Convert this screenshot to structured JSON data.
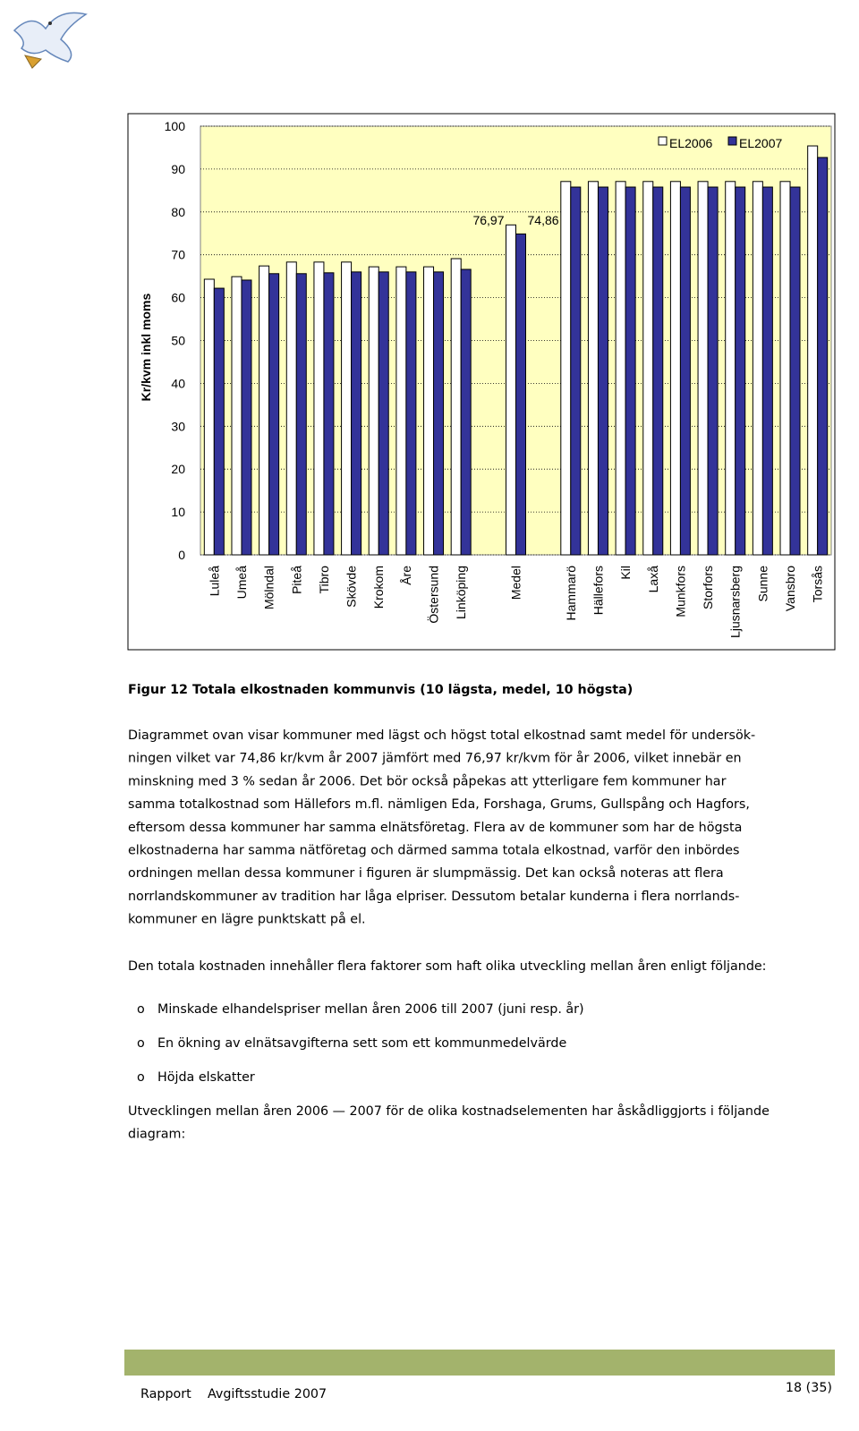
{
  "chart_data": {
    "type": "bar",
    "y_label": "Kr/kvm inkl moms",
    "categories": [
      "Luleå",
      "Umeå",
      "Mölndal",
      "Piteå",
      "Tibro",
      "Skövde",
      "Krokom",
      "Åre",
      "Östersund",
      "Linköping",
      null,
      "Medel",
      null,
      "Hammarö",
      "Hällefors",
      "Kil",
      "Laxå",
      "Munkfors",
      "Storfors",
      "Ljusnarsberg",
      "Sunne",
      "Vansbro",
      "Torsås"
    ],
    "series": [
      {
        "name": "EL2006",
        "color": "#ffffff",
        "values": [
          64.3,
          64.9,
          67.4,
          68.3,
          68.3,
          68.3,
          67.2,
          67.2,
          67.2,
          69.1,
          null,
          76.97,
          null,
          87.1,
          87.1,
          87.1,
          87.1,
          87.1,
          87.1,
          87.1,
          87.1,
          87.1,
          95.4
        ],
        "value_labels": [
          null,
          null,
          null,
          null,
          null,
          null,
          null,
          null,
          null,
          null,
          null,
          "76,97",
          null,
          null,
          null,
          null,
          null,
          null,
          null,
          null,
          null,
          null,
          null
        ]
      },
      {
        "name": "EL2007",
        "color": "#333399",
        "values": [
          62.2,
          64.1,
          65.6,
          65.6,
          65.8,
          66.0,
          66.0,
          66.0,
          66.0,
          66.6,
          null,
          74.86,
          null,
          85.8,
          85.8,
          85.8,
          85.8,
          85.8,
          85.8,
          85.8,
          85.8,
          85.8,
          92.7
        ],
        "value_labels": [
          null,
          null,
          null,
          null,
          null,
          null,
          null,
          null,
          null,
          null,
          null,
          "74,86",
          null,
          null,
          null,
          null,
          null,
          null,
          null,
          null,
          null,
          null,
          null
        ]
      }
    ],
    "ylim": [
      0,
      100
    ],
    "yticks": [
      0,
      10,
      20,
      30,
      40,
      50,
      60,
      70,
      80,
      90,
      100
    ],
    "grid": true,
    "legend": "top-right",
    "plot_background": "#ffffc0"
  },
  "document": {
    "caption": "Figur 12 Totala elkostnaden kommunvis (10 lägsta, medel, 10 högsta)",
    "paragraph": [
      "Diagrammet ovan visar kommuner med lägst och högst total elkostnad samt medel för undersök-",
      "ningen vilket var 74,86 kr/kvm år 2007 jämfört med 76,97  kr/kvm för år 2006, vilket innebär en",
      "minskning med 3 % sedan år 2006. Det bör också påpekas att ytterligare fem kommuner har",
      "samma totalkostnad som Hällefors m.fl. nämligen Eda, Forshaga, Grums, Gullspång och Hagfors,",
      "eftersom dessa kommuner har samma elnätsföretag. Flera av de kommuner som har de högsta",
      "elkostnaderna har samma nätföretag och därmed samma totala elkostnad, varför den inbördes",
      "ordningen mellan dessa kommuner i figuren är slumpmässig. Det kan också noteras att flera",
      "norrlandskommuner av tradition har låga elpriser. Dessutom betalar kunderna i flera norrlands-",
      "kommuner en lägre punktskatt på el."
    ],
    "intro": "Den totala kostnaden innehåller flera faktorer som haft olika utveckling mellan åren enligt följande:",
    "bullet_marker": "o",
    "bullets": [
      "Minskade elhandelspriser mellan åren 2006 till 2007 (juni resp. år)",
      "En ökning av elnätsavgifterna sett som ett kommunmedelvärde",
      "Höjda elskatter"
    ],
    "closing": [
      "Utvecklingen mellan åren 2006 — 2007 för de olika kostnadselementen har åskådliggjorts i följande",
      "diagram:"
    ],
    "footer": {
      "left": "Rapport    Avgiftsstudie 2007",
      "page": "18 (35)"
    }
  }
}
